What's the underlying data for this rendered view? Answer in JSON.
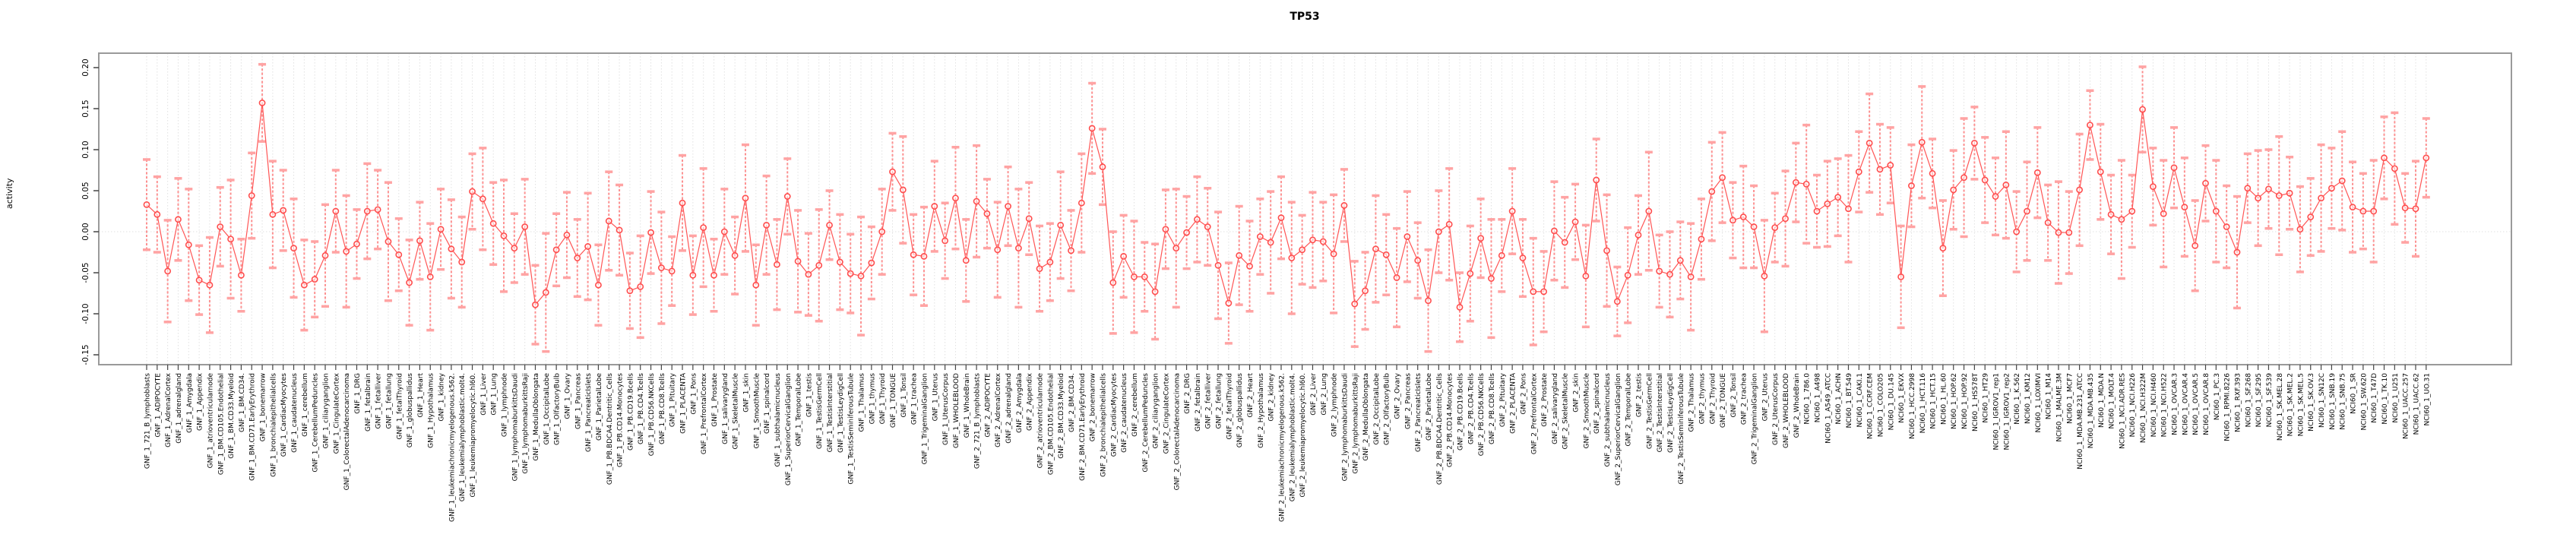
{
  "title": "TP53",
  "y_axis": {
    "label": "activity",
    "tick_labels": [
      "0.20",
      "0.15",
      "0.10",
      "0.05",
      "0.00",
      "-0.05",
      "-0.10",
      "-0.15"
    ],
    "tick_values": [
      0.2,
      0.15,
      0.1,
      0.05,
      0.0,
      -0.05,
      -0.1,
      -0.15
    ],
    "ylim": [
      -0.165,
      0.22
    ],
    "zero_reference_line": true
  },
  "colors": {
    "point": "#ff4d4d",
    "series_line": "#ff5555",
    "error_line": "#ff6666",
    "whisker_cap": "#ffa3a3",
    "gridline": "#e1e1e1",
    "plot_border": "#9a9a9a",
    "tick": "#444444",
    "text": "#000000"
  },
  "chart_data": {
    "type": "scatter",
    "title": "TP53",
    "xlabel": "",
    "ylabel": "activity",
    "grid": "dotted vertical per category, dotted horizontal at zero",
    "legend": "none",
    "panels": [
      {
        "prefix": "GNF_1_",
        "use": "tissues"
      },
      {
        "prefix": "GNF_2_",
        "use": "tissues"
      },
      {
        "prefix": "NCI60_1_",
        "use": "cell_lines"
      }
    ],
    "tissues": [
      "721_B_lymphoblasts",
      "ADIPOCYTE",
      "AdrenalCortex",
      "adrenalgland",
      "Amygdala",
      "Appendix",
      "atrioventricularnode",
      "BM.CD105.Endothelial",
      "BM.CD33.Myeloid",
      "BM.CD34.",
      "BM.CD71.EarlyErythroid",
      "bonemarrow",
      "bronchialepithelialcells",
      "CardiacMyocytes",
      "caudatenucleus",
      "cerebellum",
      "CerebellumPeduncles",
      "ciliaryganglion",
      "CingulateCortex",
      "ColorectalAdenocarcinoma",
      "DRG",
      "fetalbrain",
      "fetalliver",
      "fetallung",
      "fetalThyroid",
      "globuspallidus",
      "Heart",
      "Hypothalamus",
      "kidney",
      "leukemiachronicmyelogenous.k562.",
      "leukemialymphoblastic.molt4.",
      "leukemiapromyelocytic.hl60.",
      "Liver",
      "Lung",
      "lymphnode",
      "lymphomaburkittsDaudi",
      "lymphomaburkittsRaji",
      "MedullaOblongata",
      "OccipitalLobe",
      "OlfactoryBulb",
      "Ovary",
      "Pancreas",
      "PancreaticIslets",
      "ParietalLobe",
      "PB.BDCA4.Dentritic_Cells",
      "PB.CD14.Monocytes",
      "PB.CD19.Bcells",
      "PB.CD4.Tcells",
      "PB.CD56.NKCells",
      "PB.CD8.Tcells",
      "Pituitary",
      "PLACENTA",
      "Pons",
      "PrefrontalCortex",
      "Prostate",
      "salivarygland",
      "SkeletalMuscle",
      "skin",
      "SmoothMuscle",
      "spinalcord",
      "subthalamicnucleus",
      "SuperiorCervicalGanglion",
      "TemporalLobe",
      "testis",
      "TestisGermCell",
      "TestisInterstitial",
      "TestisLeydigCell",
      "TestisSeminiferousTubule",
      "Thalamus",
      "thymus",
      "Thyroid",
      "TONGUE",
      "Tonsil",
      "trachea",
      "TrigeminalGanglion",
      "Uterus",
      "UterusCorpus",
      "WHOLEBLOOD",
      "WholeBrain"
    ],
    "cell_lines": [
      "786.0",
      "A498",
      "A549_ATCC",
      "ACHN",
      "BT.549",
      "CAKI.1",
      "CCRF.CEM",
      "COLO205",
      "DU.145",
      "EKVX",
      "HCC.2998",
      "HCT.116",
      "HCT.15",
      "HL.60",
      "HOP.62",
      "HOP.92",
      "HS578T",
      "HT29",
      "IGROV1_rep1",
      "IGROV1_rep2",
      "K.562",
      "KM12",
      "LOXIMVI",
      "M14",
      "MALME.3M",
      "MCF7",
      "MDA.MB.231_ATCC",
      "MDA.MB.435",
      "MDA.N",
      "MOLT.4",
      "NCI.ADR.RES",
      "NCI.H226",
      "NCI.H322M",
      "NCI.H460",
      "NCI.H522",
      "OVCAR.3",
      "OVCAR.4",
      "OVCAR.5",
      "OVCAR.8",
      "PC.3",
      "RPMI.8226",
      "RXF.393",
      "SF.268",
      "SF.295",
      "SF.539",
      "SK.MEL.28",
      "SK.MEL.2",
      "SK.MEL.5",
      "SK.OV.3",
      "SN12C",
      "SNB.19",
      "SNB.75",
      "SR",
      "SW.620",
      "T47D",
      "TK.10",
      "U251",
      "UACC.257",
      "UACC.62",
      "UO.31"
    ],
    "values": [
      0.033,
      0.021,
      -0.048,
      0.015,
      -0.016,
      -0.059,
      -0.065,
      0.006,
      -0.009,
      -0.053,
      0.044,
      0.157,
      0.021,
      0.026,
      -0.02,
      -0.065,
      -0.058,
      -0.029,
      0.025,
      -0.024,
      -0.015,
      0.025,
      0.027,
      -0.012,
      -0.028,
      -0.062,
      -0.011,
      -0.055,
      0.003,
      -0.021,
      -0.037,
      0.049,
      0.04,
      0.01,
      -0.005,
      -0.02,
      0.006,
      -0.089,
      -0.074,
      -0.022,
      -0.004,
      -0.032,
      -0.018,
      -0.065,
      0.013,
      0.002,
      -0.072,
      -0.067,
      -0.001,
      -0.044,
      -0.048,
      0.035,
      -0.053,
      0.005,
      -0.053,
      0.0,
      -0.029,
      0.041,
      -0.065,
      0.008,
      -0.04,
      0.043,
      -0.036,
      -0.052,
      -0.041,
      0.008,
      -0.037,
      -0.051,
      -0.054,
      -0.038,
      0.0,
      0.073,
      0.051,
      -0.028,
      -0.03,
      0.031,
      -0.011,
      0.041,
      -0.035,
      0.037,
      0.022,
      -0.022,
      0.031,
      -0.02,
      0.016,
      -0.045,
      -0.037,
      0.008,
      -0.023,
      0.035,
      0.126,
      0.079,
      -0.062,
      -0.03,
      -0.055,
      -0.055,
      -0.073,
      0.003,
      -0.02,
      -0.001,
      0.015,
      0.006,
      -0.041,
      -0.087,
      -0.029,
      -0.042,
      -0.006,
      -0.013,
      0.017,
      -0.032,
      -0.022,
      -0.01,
      -0.012,
      -0.027,
      0.032,
      -0.088,
      -0.072,
      -0.021,
      -0.028,
      -0.056,
      -0.006,
      -0.035,
      -0.084,
      0.0,
      0.009,
      -0.092,
      -0.051,
      -0.008,
      -0.057,
      -0.029,
      0.025,
      -0.032,
      -0.073,
      -0.073,
      0.001,
      -0.013,
      0.012,
      -0.054,
      0.063,
      -0.023,
      -0.085,
      -0.053,
      -0.004,
      0.025,
      -0.048,
      -0.052,
      -0.035,
      -0.055,
      -0.009,
      0.049,
      0.066,
      0.014,
      0.018,
      0.006,
      -0.054,
      0.005,
      0.016,
      0.06,
      0.058,
      0.025,
      0.034,
      0.042,
      0.028,
      0.073,
      0.108,
      0.076,
      0.081,
      -0.055,
      0.056,
      0.109,
      0.071,
      -0.02,
      0.051,
      0.066,
      0.108,
      0.063,
      0.043,
      0.057,
      0.0,
      0.025,
      0.072,
      0.011,
      -0.001,
      -0.001,
      0.051,
      0.13,
      0.073,
      0.021,
      0.015,
      0.025,
      0.149,
      0.055,
      0.022,
      0.078,
      0.03,
      -0.017,
      0.059,
      0.025,
      0.006,
      -0.025,
      0.053,
      0.041,
      0.052,
      0.044,
      0.047,
      0.003,
      0.018,
      0.041,
      0.053,
      0.062,
      0.03,
      0.025,
      0.025,
      0.09,
      0.077,
      0.029,
      0.028,
      0.09
    ],
    "error_half_heights_cycle": [
      0.055,
      0.046,
      0.062,
      0.05,
      0.068,
      0.042,
      0.058,
      0.048,
      0.072,
      0.044,
      0.052,
      0.047,
      0.065,
      0.049,
      0.06
    ]
  }
}
